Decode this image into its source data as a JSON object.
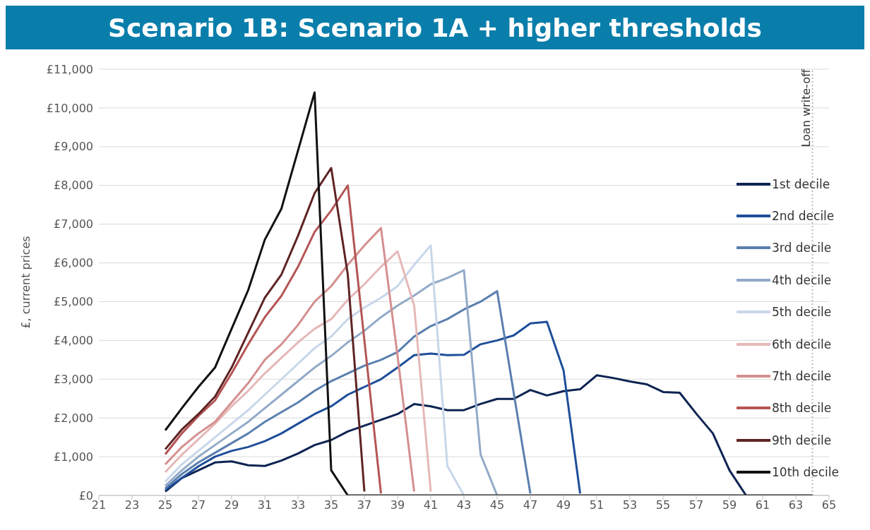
{
  "chart_data": {
    "type": "line",
    "title": "Scenario 1B: Scenario 1A + higher thresholds",
    "ylabel": "£, current prices",
    "x": [
      25,
      26,
      27,
      28,
      29,
      30,
      31,
      32,
      33,
      34,
      35,
      36,
      37,
      38,
      39,
      40,
      41,
      42,
      43,
      44,
      45,
      46,
      47,
      48,
      49,
      50,
      51,
      52,
      53,
      54,
      55,
      56,
      57,
      58,
      59,
      60,
      61,
      62,
      63,
      64
    ],
    "series": [
      {
        "name": "1st decile",
        "color": "#0d2452",
        "values": [
          100,
          450,
          650,
          850,
          880,
          780,
          760,
          900,
          1080,
          1300,
          1430,
          1650,
          1800,
          1950,
          2100,
          2360,
          2300,
          2200,
          2200,
          2360,
          2490,
          2490,
          2720,
          2580,
          2690,
          2740,
          3100,
          3030,
          2940,
          2870,
          2670,
          2650,
          2110,
          1600,
          650,
          0,
          null,
          null,
          null,
          null
        ]
      },
      {
        "name": "2nd decile",
        "color": "#1f4e9a",
        "values": [
          140,
          450,
          750,
          1000,
          1150,
          1250,
          1400,
          1600,
          1850,
          2100,
          2300,
          2600,
          2800,
          3000,
          3300,
          3620,
          3660,
          3620,
          3630,
          3900,
          4000,
          4130,
          4440,
          4480,
          3230,
          50,
          null,
          null,
          null,
          null,
          null,
          null,
          null,
          null,
          null,
          null,
          null,
          null,
          null,
          null
        ]
      },
      {
        "name": "3rd decile",
        "color": "#5a7fae",
        "values": [
          180,
          550,
          850,
          1100,
          1350,
          1600,
          1900,
          2150,
          2400,
          2700,
          2950,
          3150,
          3350,
          3500,
          3700,
          4100,
          4370,
          4550,
          4800,
          5000,
          5270,
          2640,
          50,
          null,
          null,
          null,
          null,
          null,
          null,
          null,
          null,
          null,
          null,
          null,
          null,
          null,
          null,
          null,
          null,
          null
        ]
      },
      {
        "name": "4th decile",
        "color": "#93aac8",
        "values": [
          250,
          650,
          1000,
          1300,
          1600,
          1900,
          2250,
          2600,
          2950,
          3300,
          3600,
          3950,
          4250,
          4600,
          4900,
          5160,
          5450,
          5610,
          5810,
          1060,
          0,
          null,
          null,
          null,
          null,
          null,
          null,
          null,
          null,
          null,
          null,
          null,
          null,
          null,
          null,
          null,
          null,
          null,
          null,
          null
        ]
      },
      {
        "name": "5th decile",
        "color": "#c8d7ea",
        "values": [
          360,
          800,
          1150,
          1500,
          1850,
          2200,
          2600,
          3000,
          3400,
          3800,
          4100,
          4550,
          4850,
          5100,
          5400,
          5950,
          6450,
          760,
          0,
          null,
          null,
          null,
          null,
          null,
          null,
          null,
          null,
          null,
          null,
          null,
          null,
          null,
          null,
          null,
          null,
          null,
          null,
          null,
          null,
          null
        ]
      },
      {
        "name": "6th decile",
        "color": "#e6b8b8",
        "values": [
          600,
          1050,
          1450,
          1850,
          2300,
          2700,
          3150,
          3550,
          3950,
          4300,
          4550,
          5050,
          5450,
          5900,
          6300,
          4900,
          100,
          null,
          null,
          null,
          null,
          null,
          null,
          null,
          null,
          null,
          null,
          null,
          null,
          null,
          null,
          null,
          null,
          null,
          null,
          null,
          null,
          null,
          null,
          null
        ]
      },
      {
        "name": "7th decile",
        "color": "#d48f8f",
        "values": [
          800,
          1250,
          1600,
          1900,
          2400,
          2900,
          3500,
          3900,
          4400,
          5000,
          5400,
          5950,
          6450,
          6900,
          3600,
          100,
          null,
          null,
          null,
          null,
          null,
          null,
          null,
          null,
          null,
          null,
          null,
          null,
          null,
          null,
          null,
          null,
          null,
          null,
          null,
          null,
          null,
          null,
          null,
          null
        ]
      },
      {
        "name": "8th decile",
        "color": "#b55555",
        "values": [
          1060,
          1600,
          2050,
          2450,
          3150,
          3900,
          4600,
          5150,
          5900,
          6800,
          7350,
          8000,
          4000,
          50,
          null,
          null,
          null,
          null,
          null,
          null,
          null,
          null,
          null,
          null,
          null,
          null,
          null,
          null,
          null,
          null,
          null,
          null,
          null,
          null,
          null,
          null,
          null,
          null,
          null,
          null
        ]
      },
      {
        "name": "9th decile",
        "color": "#5e2424",
        "values": [
          1190,
          1700,
          2100,
          2550,
          3300,
          4200,
          5100,
          5700,
          6700,
          7800,
          8450,
          5700,
          100,
          null,
          null,
          null,
          null,
          null,
          null,
          null,
          null,
          null,
          null,
          null,
          null,
          null,
          null,
          null,
          null,
          null,
          null,
          null,
          null,
          null,
          null,
          null,
          null,
          null,
          null,
          null
        ]
      },
      {
        "name": "10th decile",
        "color": "#111111",
        "values": [
          1680,
          2250,
          2800,
          3300,
          4300,
          5300,
          6600,
          7400,
          8900,
          10400,
          650,
          0,
          0,
          0,
          0,
          0,
          0,
          0,
          0,
          0,
          0,
          0,
          0,
          0,
          0,
          0,
          0,
          0,
          0,
          0,
          0,
          0,
          0,
          0,
          0,
          0,
          0,
          0,
          0,
          0
        ]
      }
    ],
    "xlim": [
      21,
      65
    ],
    "xticks": [
      21,
      23,
      25,
      27,
      29,
      31,
      33,
      35,
      37,
      39,
      41,
      43,
      45,
      47,
      49,
      51,
      53,
      55,
      57,
      59,
      61,
      63,
      65
    ],
    "ylim": [
      0,
      11000
    ],
    "yticks": [
      {
        "value": 0,
        "label": "£0"
      },
      {
        "value": 1000,
        "label": "£1,000"
      },
      {
        "value": 2000,
        "label": "£2,000"
      },
      {
        "value": 3000,
        "label": "£3,000"
      },
      {
        "value": 4000,
        "label": "£4,000"
      },
      {
        "value": 5000,
        "label": "£5,000"
      },
      {
        "value": 6000,
        "label": "£6,000"
      },
      {
        "value": 7000,
        "label": "£7,000"
      },
      {
        "value": 8000,
        "label": "£8,000"
      },
      {
        "value": 9000,
        "label": "£9,000"
      },
      {
        "value": 10000,
        "label": "£10,000"
      },
      {
        "value": 11000,
        "label": "£11,000"
      }
    ],
    "ref_lines": [
      {
        "axis": "x",
        "value": 64,
        "label": "Loan write-off",
        "color": "#bbbbbb",
        "line_style": "dotted"
      }
    ],
    "grid": "y",
    "legend": "right",
    "marker": "none",
    "line_style": "solid"
  }
}
